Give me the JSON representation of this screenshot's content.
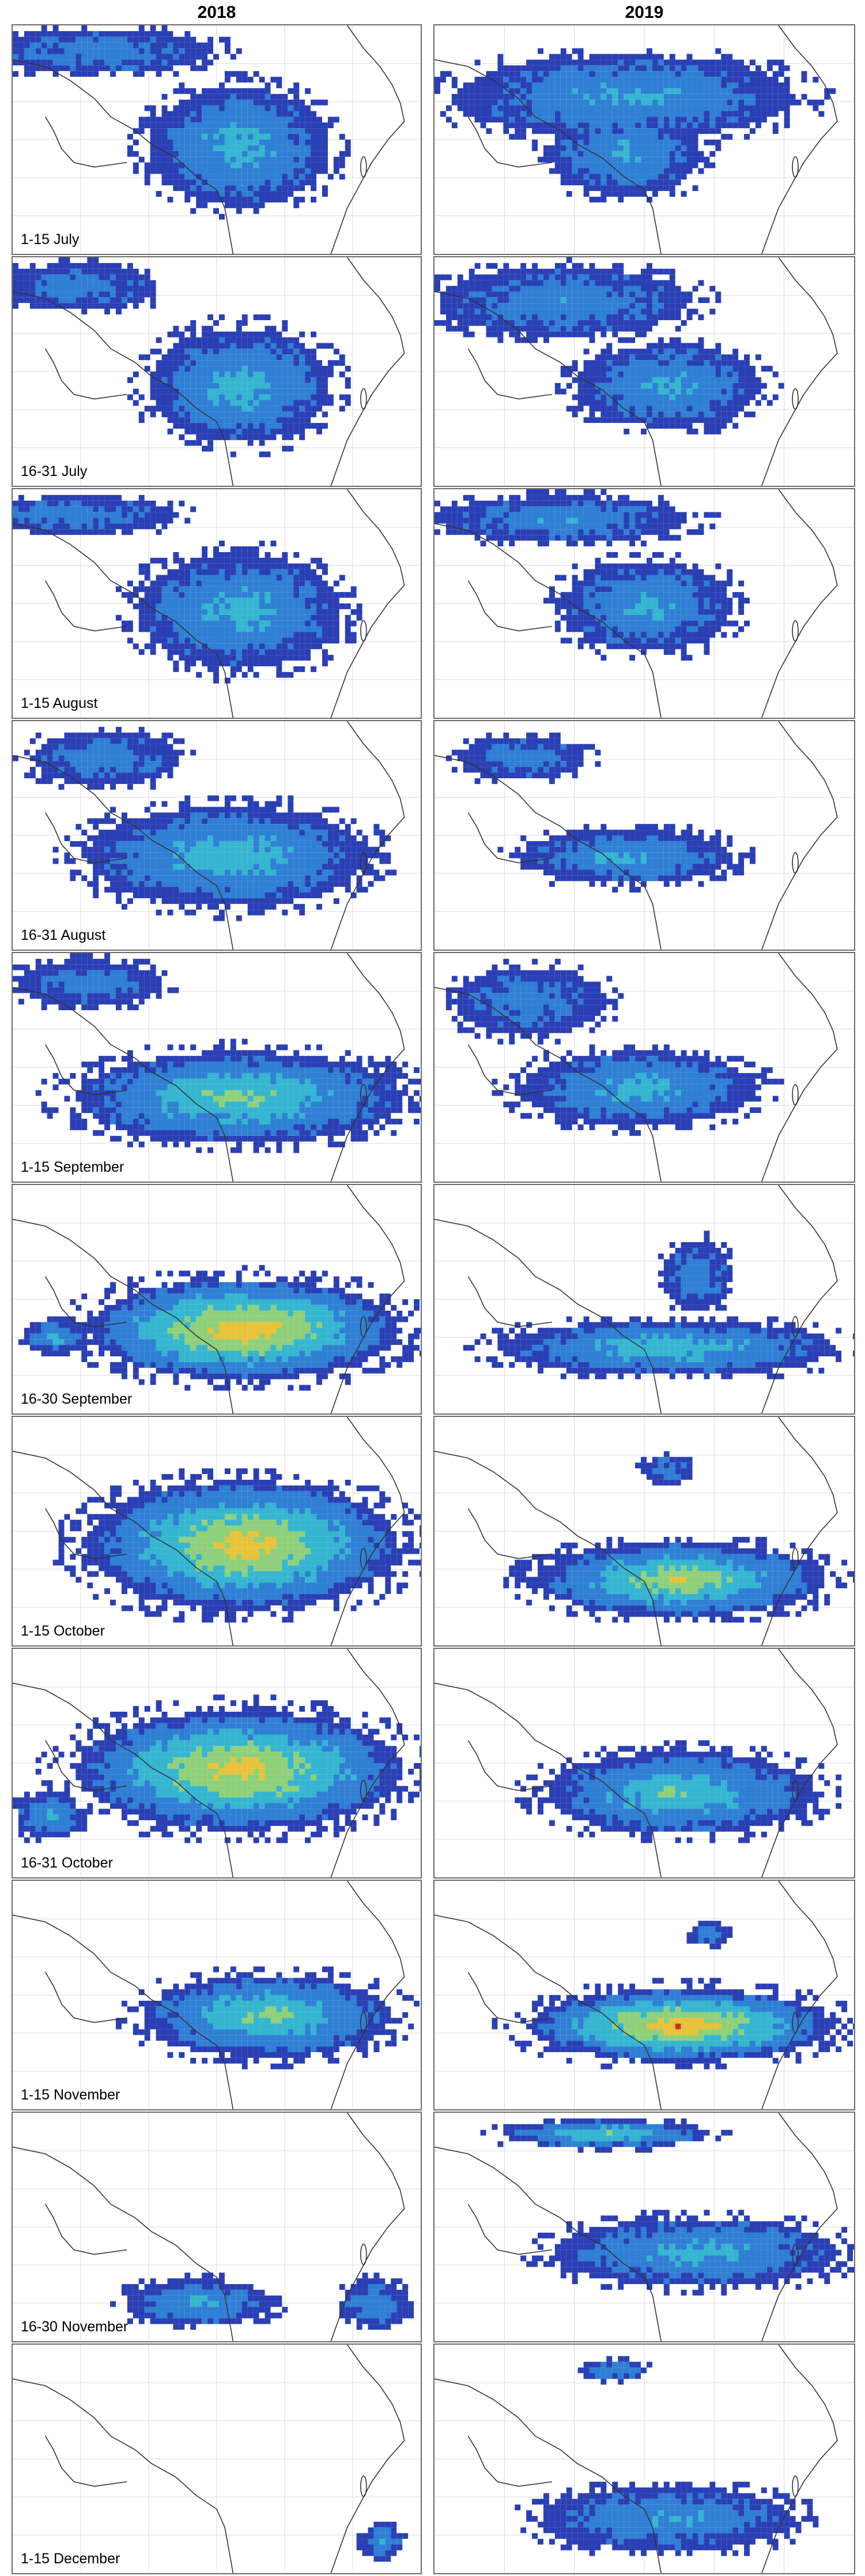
{
  "columns": [
    {
      "year": "2018"
    },
    {
      "year": "2019"
    }
  ],
  "periods": [
    "1-15 July",
    "16-31 July",
    "1-15 August",
    "16-31 August",
    "1-15 September",
    "16-30 September",
    "1-15 October",
    "16-31 October",
    "1-15 November",
    "16-30 November",
    "1-15 December"
  ],
  "color_scale": [
    "#2a3fb4",
    "#2f7fd4",
    "#35b5d0",
    "#8fd07a",
    "#e8c23a",
    "#d2301c"
  ],
  "contour_colors": {
    "low": "#ffffff",
    "high": "#d2301c"
  }
}
